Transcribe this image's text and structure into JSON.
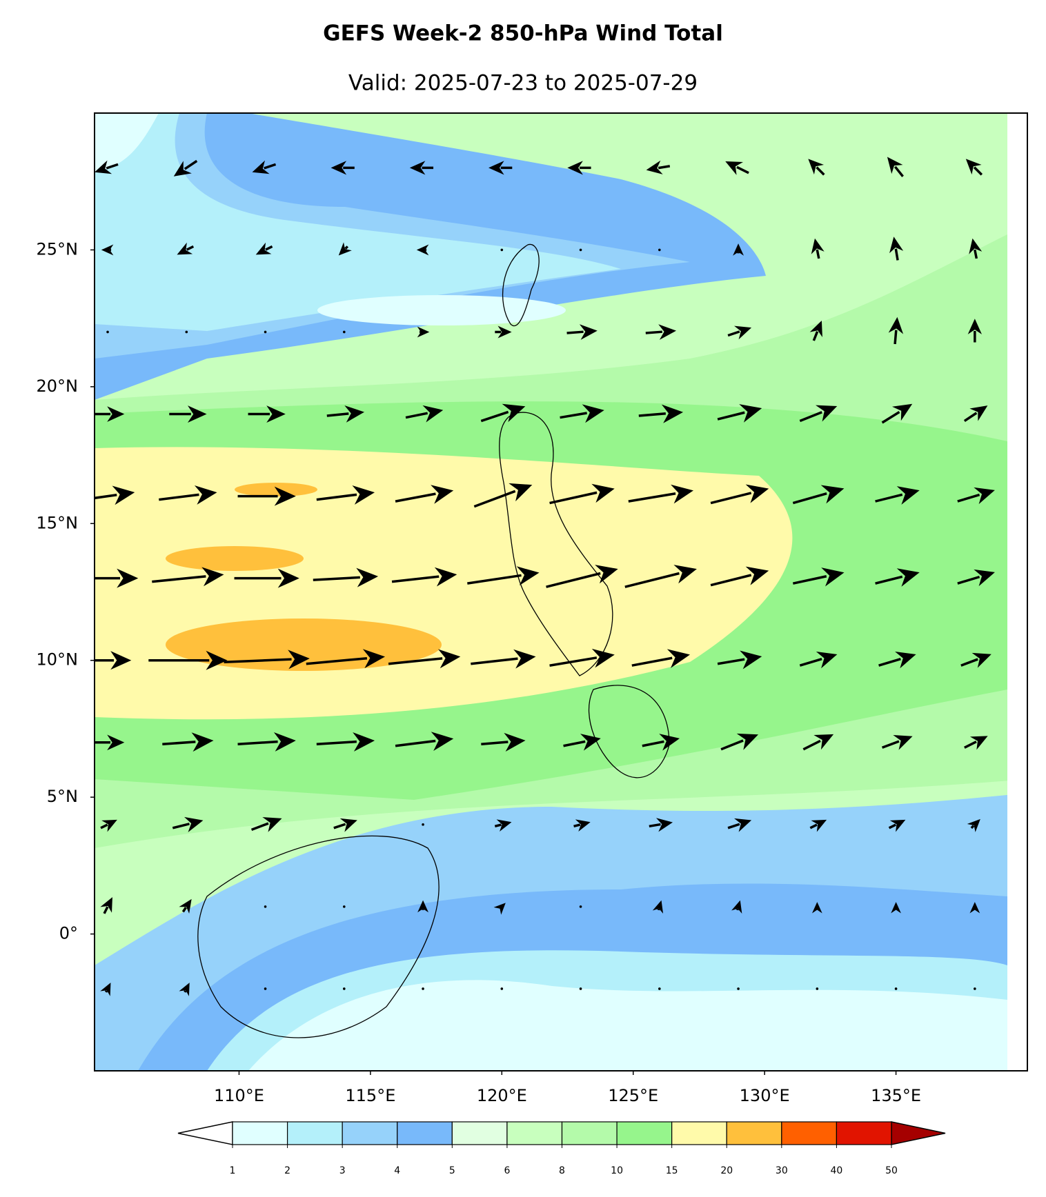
{
  "chart_data": {
    "type": "wind_map",
    "title": "GEFS Week-2 850-hPa Wind Total",
    "subtitle": "Valid: 2025-07-23 to 2025-07-29",
    "xlim": [
      104.5,
      140
    ],
    "ylim": [
      -5,
      30
    ],
    "xticks": [
      {
        "value": 110,
        "label": "110°E"
      },
      {
        "value": 115,
        "label": "115°E"
      },
      {
        "value": 120,
        "label": "120°E"
      },
      {
        "value": 125,
        "label": "125°E"
      },
      {
        "value": 130,
        "label": "130°E"
      },
      {
        "value": 135,
        "label": "135°E"
      }
    ],
    "yticks": [
      {
        "value": 0,
        "label": "0°"
      },
      {
        "value": 5,
        "label": "5°N"
      },
      {
        "value": 10,
        "label": "10°N"
      },
      {
        "value": 15,
        "label": "15°N"
      },
      {
        "value": 20,
        "label": "20°N"
      },
      {
        "value": 25,
        "label": "25°N"
      }
    ],
    "wind": {
      "lons": [
        105,
        108,
        111,
        114,
        117,
        120,
        123,
        126,
        129,
        132,
        135,
        138
      ],
      "lats": [
        28,
        25,
        22,
        19,
        16,
        13,
        10,
        7,
        4,
        1,
        -2
      ],
      "u": [
        [
          -3,
          -3,
          -3,
          -3,
          -3,
          -3,
          -3,
          -3,
          -3,
          -2,
          -2,
          -2
        ],
        [
          -1,
          -2,
          -2,
          -1,
          -1,
          0,
          0,
          0,
          0,
          -0.5,
          -0.5,
          -0.5
        ],
        [
          0,
          0,
          0,
          0,
          1,
          2,
          4,
          4,
          3,
          1,
          0.3,
          0
        ],
        [
          4,
          5,
          5,
          5,
          5,
          6,
          6,
          6,
          6,
          5,
          4,
          3
        ],
        [
          7,
          8,
          8,
          8,
          8,
          8,
          9,
          9,
          8,
          7,
          6,
          5
        ],
        [
          8,
          10,
          9,
          9,
          9,
          10,
          10,
          10,
          8,
          7,
          6,
          5
        ],
        [
          6,
          11,
          12,
          11,
          10,
          9,
          9,
          8,
          6,
          5,
          5,
          4
        ],
        [
          4,
          7,
          8,
          8,
          8,
          6,
          5,
          5,
          5,
          4,
          4,
          3
        ],
        [
          2,
          4,
          4,
          3,
          0,
          2,
          2,
          3,
          3,
          2,
          2,
          1
        ],
        [
          1,
          1,
          0,
          0,
          0,
          0.5,
          0,
          0.3,
          0.3,
          0,
          0,
          0
        ],
        [
          0.5,
          0.5,
          0,
          0,
          0,
          0,
          0,
          0,
          0,
          0,
          0,
          0
        ]
      ],
      "v": [
        [
          -1,
          -2,
          -1,
          0,
          0,
          0,
          0,
          -0.5,
          1.5,
          2,
          2.5,
          2
        ],
        [
          0,
          -1,
          -1,
          -1,
          0,
          0,
          0,
          0,
          1,
          2.5,
          3,
          2.5
        ],
        [
          0,
          0,
          0,
          0,
          0,
          0,
          0.3,
          0.3,
          1,
          2.5,
          3.5,
          3
        ],
        [
          0,
          0,
          0,
          0.5,
          1,
          2,
          1,
          0.5,
          1.5,
          2,
          2.5,
          2
        ],
        [
          1,
          1,
          0,
          1,
          1.5,
          3,
          2,
          1.5,
          2,
          2,
          1.5,
          1.5
        ],
        [
          0,
          1,
          0,
          0.5,
          1,
          1.5,
          2.5,
          2.5,
          2,
          1.5,
          1.5,
          1.5
        ],
        [
          0,
          0,
          0.5,
          1,
          1,
          1,
          1.5,
          1.5,
          1,
          1.5,
          1.5,
          1.5
        ],
        [
          0,
          0.5,
          0.5,
          0.5,
          1,
          0.5,
          1,
          1,
          2,
          2,
          1.5,
          1.5
        ],
        [
          1,
          1,
          1.5,
          1,
          0,
          0.5,
          0.5,
          0.5,
          1,
          1,
          1,
          1
        ],
        [
          2,
          1.5,
          0,
          0,
          1,
          0.5,
          0,
          1,
          1,
          0.5,
          0.5,
          0.5
        ],
        [
          1,
          1,
          0,
          0,
          0,
          0,
          0,
          0,
          0,
          0,
          0,
          0
        ]
      ],
      "color": "#000000"
    },
    "colorbar": {
      "levels": [
        1,
        2,
        3,
        4,
        5,
        6,
        8,
        10,
        15,
        20,
        30,
        40,
        50
      ],
      "colors": [
        "#e0ffff",
        "#b4f0fa",
        "#96d2fa",
        "#78b9fa",
        "#e1ffe1",
        "#c8ffbe",
        "#b4faaa",
        "#96f58c",
        "#fffaaa",
        "#ffc03c",
        "#ff6000",
        "#e11400"
      ],
      "under_color": "#ffffff",
      "over_color": "#a50000"
    }
  }
}
